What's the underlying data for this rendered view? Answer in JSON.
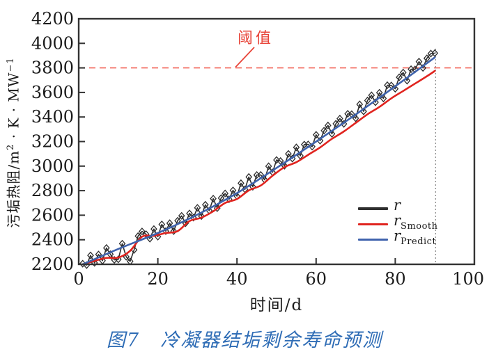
{
  "figure": {
    "caption": "图7　冷凝器结垢剩余寿命预测"
  },
  "chart_data": {
    "type": "line",
    "title": "",
    "xlabel": "时间/d",
    "ylabel": "污垢热阻/m2·K·MW-1",
    "ylabel_parts": {
      "p1": "污垢热阻/m",
      "sup1": "2",
      "p2": " · K · MW",
      "sup2": "−1"
    },
    "xlim": [
      0,
      100
    ],
    "ylim": [
      2200,
      4200
    ],
    "xticks": [
      0,
      20,
      40,
      60,
      80,
      100
    ],
    "yticks": [
      2200,
      2400,
      2600,
      2800,
      3000,
      3200,
      3400,
      3600,
      3800,
      4000,
      4200
    ],
    "grid": false,
    "legend_position": "lower right",
    "threshold": {
      "label": "阈值",
      "value": 3800
    },
    "prediction_end_x": 90.2,
    "colors": {
      "r": "#2e2e2e",
      "smooth": "#e0241f",
      "predict": "#3f63ad",
      "threshold_dash": "#f2685c",
      "threshold_label": "#e8453a",
      "cutoff": "#8a8a8a",
      "axis": "#333333",
      "caption": "#2e6cb5"
    },
    "series": [
      {
        "name": "r",
        "legend_base": "r",
        "legend_sub": "",
        "style": "noisy-line-with-open-diamond-markers",
        "x_start": 1,
        "x_end": 90,
        "noise": [
          5,
          -20,
          45,
          -30,
          25,
          -40,
          50,
          -15,
          -75,
          -85,
          30,
          -90,
          -140,
          -60,
          40,
          65,
          30,
          -20,
          45,
          -30,
          55,
          -15,
          35,
          -45,
          25,
          50,
          -25,
          40,
          -10,
          55,
          -30,
          45,
          -20,
          60,
          -35,
          30,
          50,
          -15,
          40,
          -25,
          60,
          -10,
          70,
          -30,
          45,
          25,
          -35,
          55,
          -15,
          65,
          35,
          -25,
          50,
          -10,
          60,
          -30,
          40,
          20,
          -20,
          55,
          -15,
          45,
          65,
          -25,
          35,
          55,
          -10,
          50,
          25,
          -30,
          60,
          -20,
          45,
          65,
          -15,
          40,
          -30,
          55,
          30,
          -20,
          50,
          65,
          -25,
          45,
          20,
          60,
          -15,
          40,
          55,
          35
        ]
      },
      {
        "name": "r_Smooth",
        "legend_base": "r",
        "legend_sub": "Smooth",
        "style": "smooth-line",
        "anchors_t": [
          1,
          4,
          7,
          10,
          13,
          16,
          19,
          22,
          25,
          28,
          31,
          34,
          37,
          40,
          43,
          46,
          49,
          52,
          55,
          58,
          61,
          64,
          67,
          70,
          73,
          76,
          79,
          82,
          85,
          88,
          90
        ],
        "anchors_v": [
          2200,
          2228,
          2252,
          2255,
          2310,
          2425,
          2432,
          2455,
          2470,
          2552,
          2580,
          2632,
          2700,
          2732,
          2802,
          2842,
          2922,
          2992,
          3032,
          3092,
          3152,
          3222,
          3282,
          3352,
          3422,
          3482,
          3552,
          3612,
          3672,
          3732,
          3775
        ]
      },
      {
        "name": "r_Predict",
        "legend_base": "r",
        "legend_sub": "Predict",
        "style": "smooth-line",
        "anchors_t": [
          1,
          10,
          20,
          30,
          40,
          50,
          60,
          70,
          80,
          90
        ],
        "anchors_v": [
          2200,
          2325,
          2455,
          2605,
          2780,
          2985,
          3200,
          3420,
          3650,
          3885
        ]
      }
    ]
  }
}
